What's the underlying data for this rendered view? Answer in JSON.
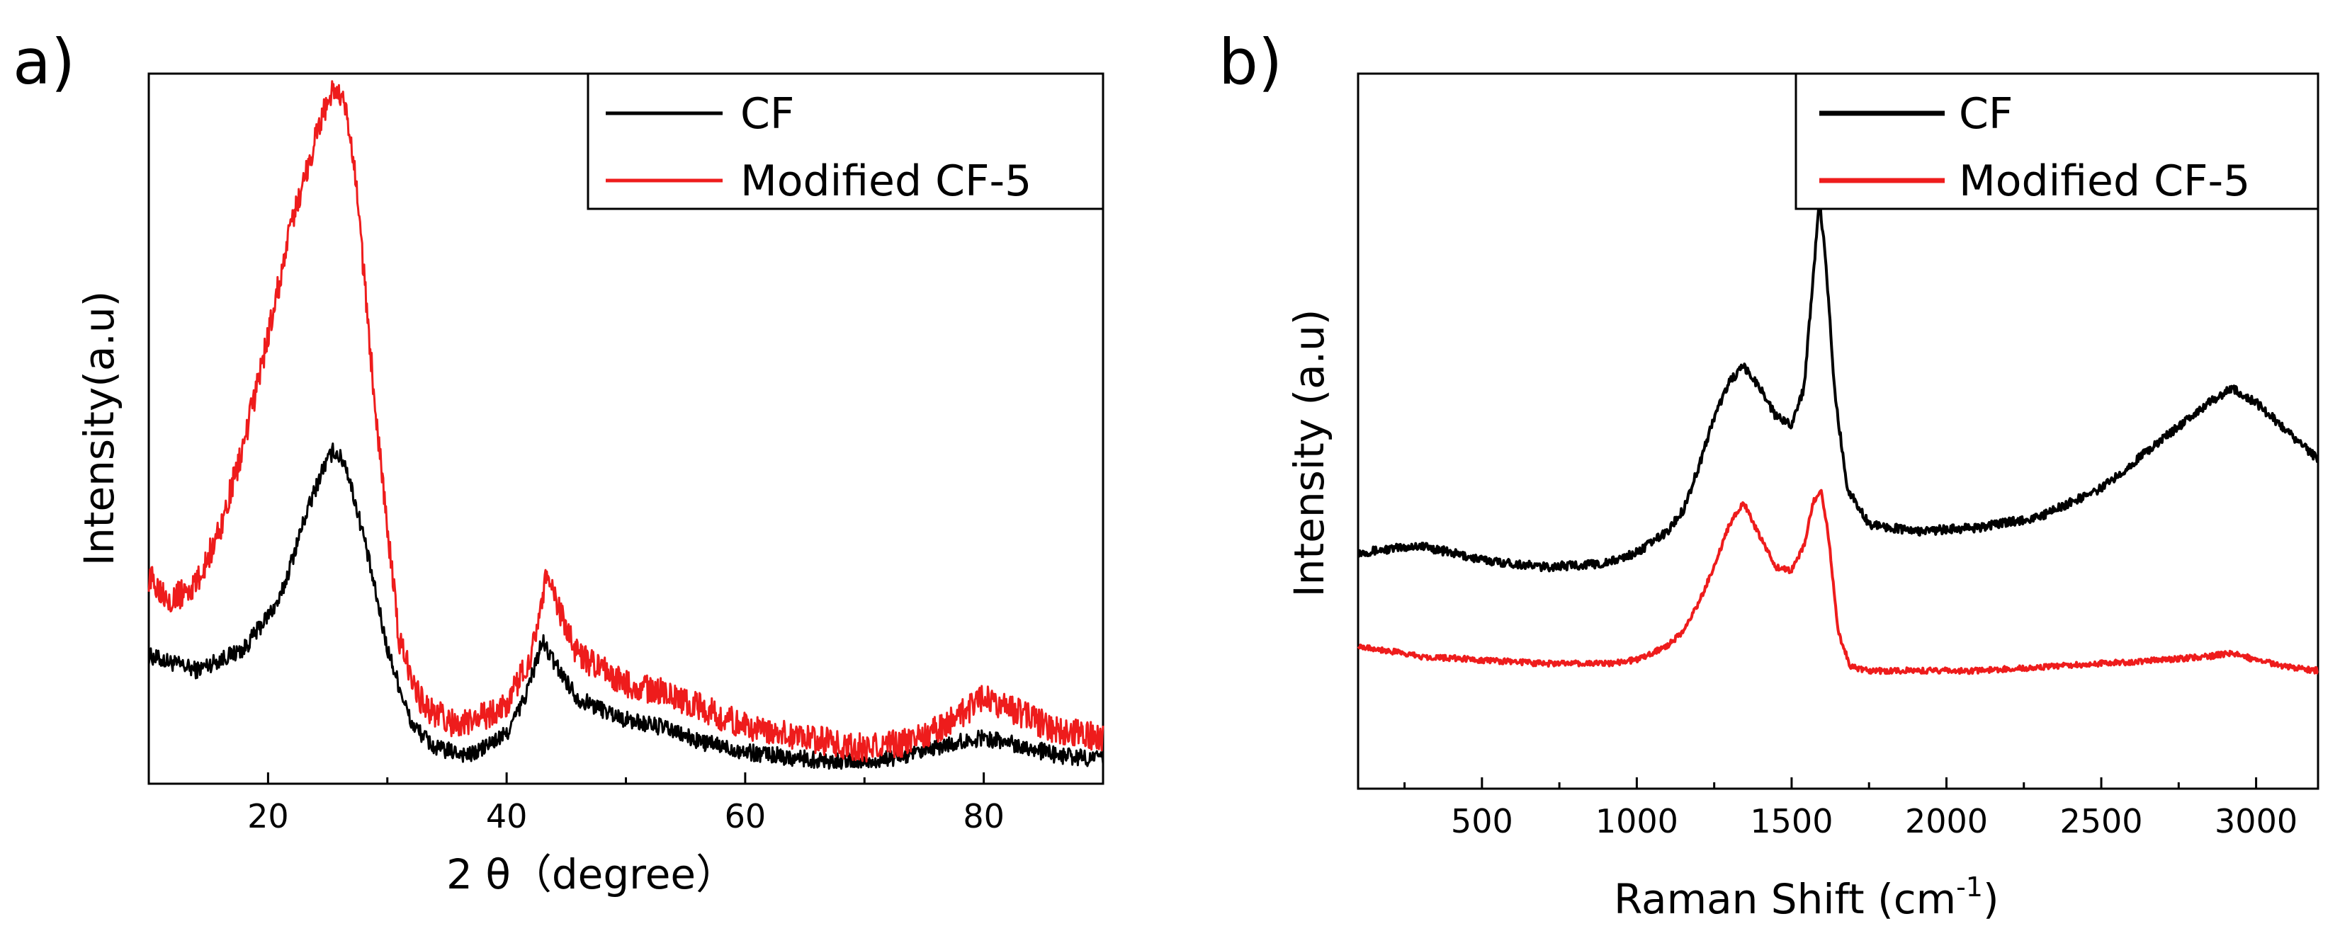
{
  "chart_data": [
    {
      "type": "line",
      "panel_label": "a)",
      "xlabel": "2 θ（degree）",
      "ylabel": "Intensity(a.u)",
      "xlim": [
        10,
        90
      ],
      "ylim": [
        0,
        1
      ],
      "xticks": [
        20,
        40,
        60,
        80
      ],
      "xtick_labels": [
        "20",
        "40",
        "60",
        "80"
      ],
      "y_tick_labels_shown": false,
      "legend_position": "top-right",
      "series": [
        {
          "name": "CF",
          "color": "#000000",
          "x": [
            10,
            14,
            18,
            21,
            23,
            24.5,
            25.5,
            26.5,
            28,
            30,
            32,
            34,
            37,
            40,
            41.5,
            43,
            44,
            46,
            50,
            53,
            56,
            60,
            65,
            70,
            74,
            77,
            80,
            83,
            86,
            90
          ],
          "values": [
            0.18,
            0.16,
            0.19,
            0.26,
            0.37,
            0.44,
            0.47,
            0.45,
            0.35,
            0.19,
            0.085,
            0.05,
            0.04,
            0.07,
            0.12,
            0.2,
            0.17,
            0.12,
            0.09,
            0.08,
            0.06,
            0.045,
            0.035,
            0.03,
            0.04,
            0.055,
            0.065,
            0.055,
            0.04,
            0.035
          ]
        },
        {
          "name": "Modified CF-5",
          "color": "#ee1c1c",
          "x": [
            10,
            12,
            14,
            16,
            18,
            20,
            22,
            23.5,
            24.5,
            25.5,
            26.5,
            27.5,
            28.5,
            30,
            31,
            33,
            36,
            40,
            42,
            43.3,
            44.5,
            46,
            50,
            53,
            56,
            60,
            65,
            70,
            74,
            77,
            80,
            83,
            86,
            90
          ],
          "values": [
            0.29,
            0.26,
            0.28,
            0.36,
            0.48,
            0.63,
            0.79,
            0.88,
            0.94,
            0.98,
            0.95,
            0.83,
            0.62,
            0.36,
            0.2,
            0.11,
            0.08,
            0.11,
            0.18,
            0.29,
            0.24,
            0.18,
            0.14,
            0.13,
            0.11,
            0.08,
            0.065,
            0.05,
            0.06,
            0.085,
            0.12,
            0.1,
            0.075,
            0.065
          ]
        }
      ]
    },
    {
      "type": "line",
      "panel_label": "b)",
      "xlabel": "Raman Shift (cm",
      "xlabel_superscript": "-1",
      "xlabel_suffix": ")",
      "ylabel": "Intensity (a.u)",
      "xlim": [
        100,
        3200
      ],
      "ylim": [
        0,
        1
      ],
      "xticks": [
        500,
        1000,
        1500,
        2000,
        2500,
        3000
      ],
      "xtick_labels": [
        "500",
        "1000",
        "1500",
        "2000",
        "2500",
        "3000"
      ],
      "y_tick_labels_shown": false,
      "legend_position": "top-right",
      "series": [
        {
          "name": "CF",
          "color": "#000000",
          "x": [
            100,
            300,
            500,
            700,
            900,
            1000,
            1100,
            1150,
            1200,
            1250,
            1300,
            1345,
            1400,
            1450,
            1500,
            1540,
            1570,
            1590,
            1610,
            1640,
            1680,
            1750,
            1900,
            2100,
            2300,
            2500,
            2700,
            2850,
            2920,
            3000,
            3100,
            3200
          ],
          "values": [
            0.33,
            0.34,
            0.32,
            0.31,
            0.315,
            0.33,
            0.36,
            0.39,
            0.45,
            0.52,
            0.57,
            0.59,
            0.56,
            0.52,
            0.51,
            0.56,
            0.72,
            0.82,
            0.74,
            0.55,
            0.42,
            0.37,
            0.36,
            0.365,
            0.38,
            0.42,
            0.49,
            0.54,
            0.56,
            0.54,
            0.5,
            0.46
          ]
        },
        {
          "name": "Modified CF-5",
          "color": "#ee1c1c",
          "x": [
            100,
            300,
            500,
            700,
            900,
            1000,
            1100,
            1150,
            1200,
            1250,
            1300,
            1345,
            1400,
            1450,
            1500,
            1540,
            1570,
            1595,
            1620,
            1650,
            1690,
            1750,
            1900,
            2100,
            2300,
            2500,
            2700,
            2850,
            2920,
            3000,
            3100,
            3200
          ],
          "values": [
            0.2,
            0.185,
            0.18,
            0.175,
            0.175,
            0.18,
            0.2,
            0.22,
            0.26,
            0.31,
            0.37,
            0.4,
            0.35,
            0.31,
            0.305,
            0.34,
            0.4,
            0.42,
            0.35,
            0.22,
            0.17,
            0.165,
            0.165,
            0.165,
            0.17,
            0.175,
            0.18,
            0.185,
            0.19,
            0.18,
            0.17,
            0.165
          ]
        }
      ]
    }
  ]
}
